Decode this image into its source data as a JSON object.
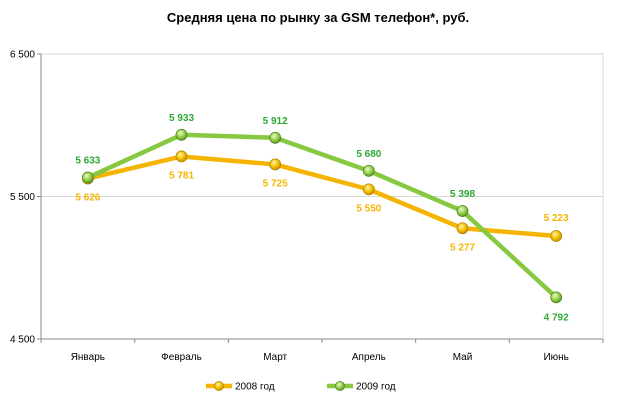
{
  "chart_data": {
    "type": "line",
    "title": "Средняя цена по рынку за GSM телефон*,  руб.",
    "xlabel": "",
    "ylabel": "",
    "categories": [
      "Январь",
      "Февраль",
      "Март",
      "Апрель",
      "Май",
      "Июнь"
    ],
    "y_ticks": [
      4500,
      5500,
      6500
    ],
    "y_tick_labels": [
      "4 500",
      "5 500",
      "6 500"
    ],
    "ylim": [
      4500,
      6500
    ],
    "grid": true,
    "legend_position": "bottom",
    "series": [
      {
        "name": "2008 год",
        "color": "#F5B400",
        "values": [
          5626,
          5781,
          5725,
          5550,
          5277,
          5223
        ],
        "labels": [
          "5 626",
          "5 781",
          "5 725",
          "5 550",
          "5 277",
          "5 223"
        ]
      },
      {
        "name": "2009 год",
        "color": "#86C840",
        "label_color": "#2EA836",
        "values": [
          5633,
          5933,
          5912,
          5680,
          5398,
          4792
        ],
        "labels": [
          "5 633",
          "5 933",
          "5 912",
          "5 680",
          "5 398",
          "4 792"
        ]
      }
    ]
  }
}
